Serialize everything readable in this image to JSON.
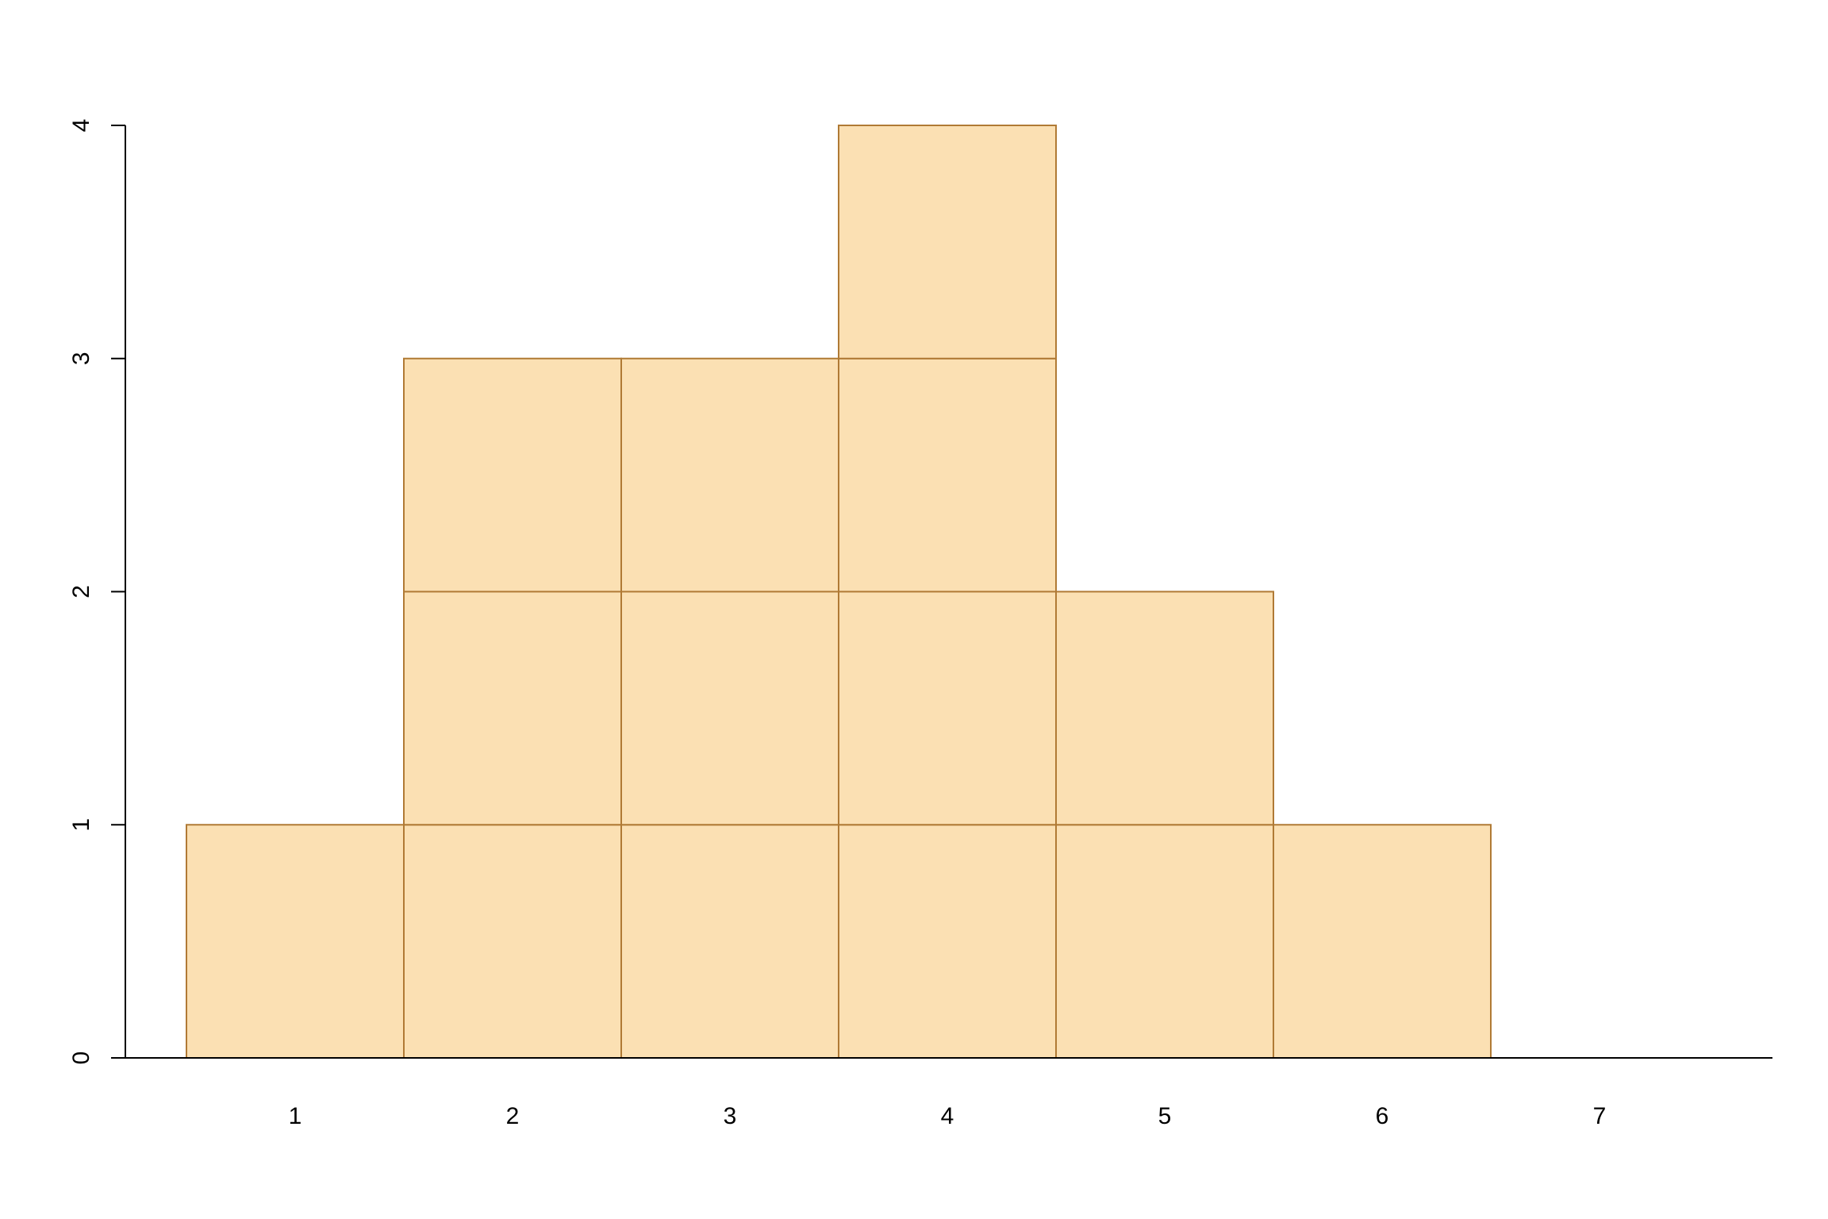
{
  "chart_data": {
    "type": "bar",
    "title": "",
    "xlabel": "",
    "ylabel": "",
    "categories": [
      "1",
      "2",
      "3",
      "4",
      "5",
      "6",
      "7"
    ],
    "values": [
      1,
      3,
      3,
      4,
      2,
      1,
      0
    ],
    "stacked_unit_boxes": true,
    "ylim": [
      0,
      4
    ],
    "yticks": [
      "0",
      "1",
      "2",
      "3",
      "4"
    ],
    "grid": false,
    "legend": "none",
    "colors": {
      "fill": "#FBE0B3",
      "stroke": "#B07A35",
      "axis": "#000000"
    }
  }
}
